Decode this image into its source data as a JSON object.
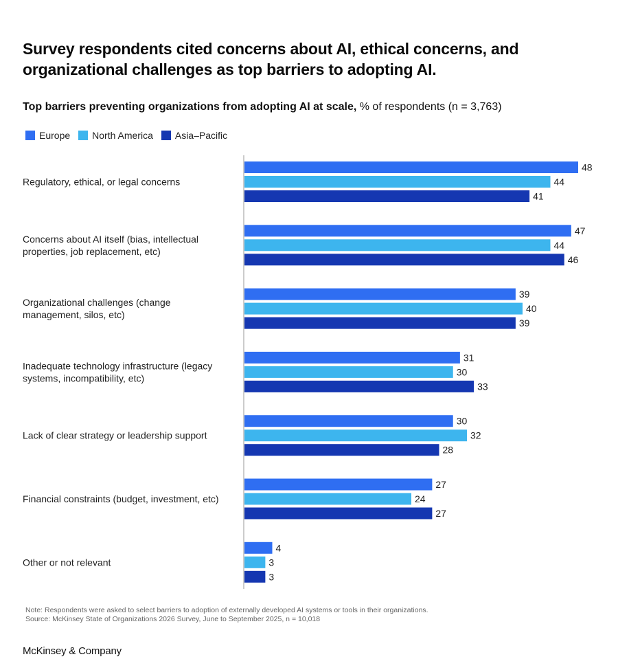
{
  "title": "Survey respondents cited concerns about AI, ethical concerns, and organizational challenges as top barriers to adopting AI.",
  "subtitle_bold": "Top barriers preventing organizations from adopting AI at scale,",
  "subtitle_rest": " % of respondents (n = 3,763)",
  "note": "Note: Respondents were asked to select barriers to adoption of externally developed AI systems or tools in their organizations.",
  "source": "Source: McKinsey State of Organizations 2026 Survey, June to September 2025, n = 10,018",
  "brand": "McKinsey & Company",
  "colors": {
    "europe": "#2f6ef2",
    "north_america": "#3db5ee",
    "asia_pacific": "#1537b1"
  },
  "chart_data": {
    "type": "bar",
    "orientation": "horizontal",
    "title": "Top barriers preventing organizations from adopting AI at scale",
    "unit": "% of respondents",
    "xlim": [
      0,
      48
    ],
    "categories": [
      [
        "Regulatory, ethical, or legal concerns"
      ],
      [
        "Concerns about AI itself (bias, intellectual",
        "properties, job replacement, etc)"
      ],
      [
        "Organizational challenges (change",
        "management, silos, etc)"
      ],
      [
        "Inadequate technology infrastructure (legacy",
        "systems, incompatibility, etc)"
      ],
      [
        "Lack of clear strategy or leadership support"
      ],
      [
        "Financial constraints (budget, investment, etc)"
      ],
      [
        "Other or not relevant"
      ]
    ],
    "series": [
      {
        "name": "Europe",
        "color": "#2f6ef2",
        "values": [
          48,
          47,
          39,
          31,
          30,
          27,
          4
        ]
      },
      {
        "name": "North America",
        "color": "#3db5ee",
        "values": [
          44,
          44,
          40,
          30,
          32,
          24,
          3
        ]
      },
      {
        "name": "Asia–Pacific",
        "color": "#1537b1",
        "values": [
          41,
          46,
          39,
          33,
          28,
          27,
          3
        ]
      }
    ]
  }
}
